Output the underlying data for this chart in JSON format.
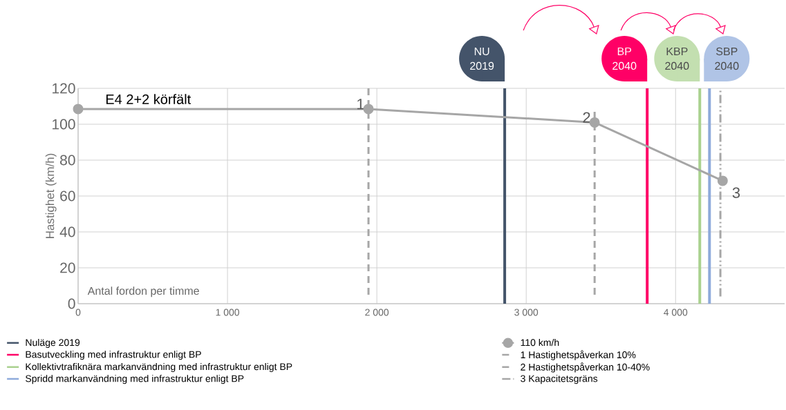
{
  "chart_data": {
    "type": "line",
    "xlabel": "Antal fordon per timme",
    "ylabel": "Hastighet (km/h)",
    "xlim": [
      0,
      4730
    ],
    "ylim": [
      0,
      120
    ],
    "xticks": [
      0,
      {
        "value": 1000,
        "label": "1 000"
      },
      {
        "value": 2000,
        "label": "2 000"
      },
      {
        "value": 3000,
        "label": "3 000"
      },
      {
        "value": 4000,
        "label": "4 000"
      }
    ],
    "yticks": [
      0,
      20,
      40,
      60,
      80,
      100,
      120
    ],
    "grid": true,
    "legend": "bottom",
    "series": [
      {
        "name": "Nuläge 2019",
        "color": "#44546a",
        "x": [
          2856,
          2856
        ],
        "values": [
          0,
          120
        ],
        "line_style": "solid",
        "marker": "none"
      },
      {
        "name": "Basutveckling med infrastruktur enligt BP",
        "color": "#ff0066",
        "x": [
          3810,
          3810
        ],
        "values": [
          0,
          120
        ],
        "line_style": "solid",
        "marker": "none"
      },
      {
        "name": "Kollektivtrafiknära markanvändning med infrastruktur enligt BP",
        "color": "#a9d18e",
        "x": [
          4162,
          4162
        ],
        "values": [
          0,
          120
        ],
        "line_style": "solid",
        "marker": "none"
      },
      {
        "name": "Spridd markanvändning med infrastruktur enligt BP",
        "color": "#8eaadb",
        "x": [
          4227,
          4227
        ],
        "values": [
          0,
          120
        ],
        "line_style": "solid",
        "marker": "none"
      },
      {
        "name": "110 km/h",
        "color": "#a6a6a6",
        "x": [
          0,
          1944,
          3458,
          4315
        ],
        "values": [
          108.5,
          108.5,
          101,
          68.5
        ],
        "line_style": "solid",
        "marker": "circle"
      },
      {
        "name": "1 Hastighetspåverkan 10%",
        "color": "#a6a6a6",
        "x": [
          1944,
          1944
        ],
        "values": [
          5,
          120
        ],
        "line_style": "dashed",
        "marker": "none"
      },
      {
        "name": "2 Hastighetspåverkan 10-40%",
        "color": "#a6a6a6",
        "x": [
          3458,
          3458
        ],
        "values": [
          5,
          108
        ],
        "line_style": "dashed",
        "marker": "none"
      },
      {
        "name": "3 Kapacitetsgräns",
        "color": "#a6a6a6",
        "x": [
          4300,
          4300
        ],
        "values": [
          4,
          120
        ],
        "line_style": "dashdotted",
        "marker": "none"
      }
    ],
    "annotations": [
      "E4 2+2 körfält",
      {
        "text": "1",
        "x": 1944,
        "y": 108.5
      },
      {
        "text": "2",
        "x": 3458,
        "y": 101
      },
      {
        "text": "3",
        "x": 4315,
        "y": 68.5
      },
      "NU 2019",
      "BP 2040",
      "KBP 2040",
      "SBP 2040"
    ]
  }
}
